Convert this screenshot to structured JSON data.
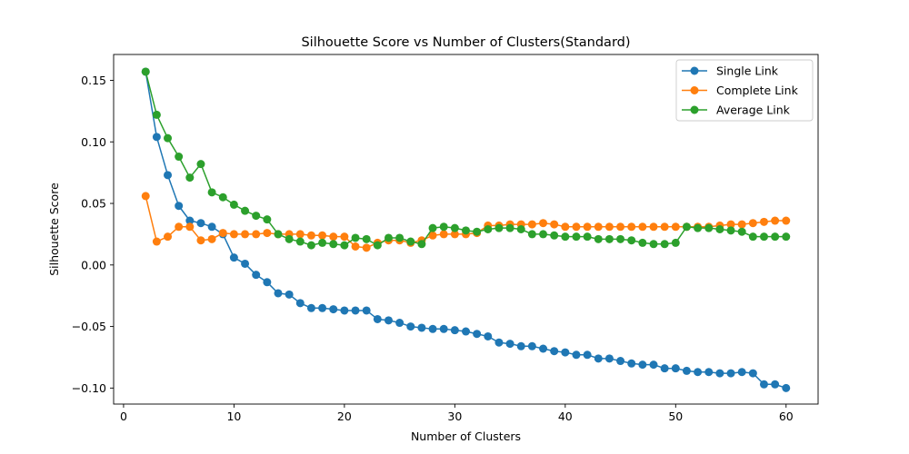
{
  "chart_data": {
    "type": "line",
    "title": "Silhouette Score vs Number of Clusters(Standard)",
    "xlabel": "Number of Clusters",
    "ylabel": "Silhouette Score",
    "xlim": [
      -0.9,
      62.9
    ],
    "ylim": [
      -0.113,
      0.171
    ],
    "x_ticks": [
      0,
      10,
      20,
      30,
      40,
      50,
      60
    ],
    "y_ticks": [
      -0.1,
      -0.05,
      0.0,
      0.05,
      0.1,
      0.15
    ],
    "y_tick_labels": [
      "−0.10",
      "−0.05",
      "0.00",
      "0.05",
      "0.10",
      "0.15"
    ],
    "grid": false,
    "legend": "top-right",
    "x": [
      2,
      3,
      4,
      5,
      6,
      7,
      8,
      9,
      10,
      11,
      12,
      13,
      14,
      15,
      16,
      17,
      18,
      19,
      20,
      21,
      22,
      23,
      24,
      25,
      26,
      27,
      28,
      29,
      30,
      31,
      32,
      33,
      34,
      35,
      36,
      37,
      38,
      39,
      40,
      41,
      42,
      43,
      44,
      45,
      46,
      47,
      48,
      49,
      50,
      51,
      52,
      53,
      54,
      55,
      56,
      57,
      58,
      59,
      60
    ],
    "series": [
      {
        "name": "Single Link",
        "color": "#1f77b4",
        "values": [
          0.157,
          0.104,
          0.073,
          0.048,
          0.036,
          0.034,
          0.031,
          0.025,
          0.006,
          0.001,
          -0.008,
          -0.014,
          -0.023,
          -0.024,
          -0.031,
          -0.035,
          -0.035,
          -0.036,
          -0.037,
          -0.037,
          -0.037,
          -0.044,
          -0.045,
          -0.047,
          -0.05,
          -0.051,
          -0.052,
          -0.052,
          -0.053,
          -0.054,
          -0.056,
          -0.058,
          -0.063,
          -0.064,
          -0.066,
          -0.066,
          -0.068,
          -0.07,
          -0.071,
          -0.073,
          -0.073,
          -0.076,
          -0.076,
          -0.078,
          -0.08,
          -0.081,
          -0.081,
          -0.084,
          -0.084,
          -0.086,
          -0.087,
          -0.087,
          -0.088,
          -0.088,
          -0.087,
          -0.088,
          -0.097,
          -0.097,
          -0.1
        ]
      },
      {
        "name": "Complete Link",
        "color": "#ff7f0e",
        "values": [
          0.056,
          0.019,
          0.023,
          0.031,
          0.031,
          0.02,
          0.021,
          0.026,
          0.025,
          0.025,
          0.025,
          0.026,
          0.025,
          0.025,
          0.025,
          0.024,
          0.024,
          0.023,
          0.023,
          0.015,
          0.014,
          0.018,
          0.02,
          0.02,
          0.018,
          0.02,
          0.024,
          0.025,
          0.025,
          0.025,
          0.026,
          0.032,
          0.032,
          0.033,
          0.033,
          0.033,
          0.034,
          0.033,
          0.031,
          0.031,
          0.031,
          0.031,
          0.031,
          0.031,
          0.031,
          0.031,
          0.031,
          0.031,
          0.031,
          0.031,
          0.031,
          0.031,
          0.032,
          0.033,
          0.033,
          0.034,
          0.035,
          0.036,
          0.036
        ]
      },
      {
        "name": "Average Link",
        "color": "#2ca02c",
        "values": [
          0.157,
          0.122,
          0.103,
          0.088,
          0.071,
          0.082,
          0.059,
          0.055,
          0.049,
          0.044,
          0.04,
          0.037,
          0.025,
          0.021,
          0.019,
          0.016,
          0.018,
          0.017,
          0.016,
          0.022,
          0.021,
          0.016,
          0.022,
          0.022,
          0.019,
          0.017,
          0.03,
          0.031,
          0.03,
          0.028,
          0.027,
          0.029,
          0.03,
          0.03,
          0.029,
          0.025,
          0.025,
          0.024,
          0.023,
          0.023,
          0.023,
          0.021,
          0.021,
          0.021,
          0.02,
          0.018,
          0.017,
          0.017,
          0.018,
          0.031,
          0.03,
          0.03,
          0.029,
          0.028,
          0.027,
          0.023,
          0.023,
          0.023,
          0.023
        ]
      }
    ]
  }
}
